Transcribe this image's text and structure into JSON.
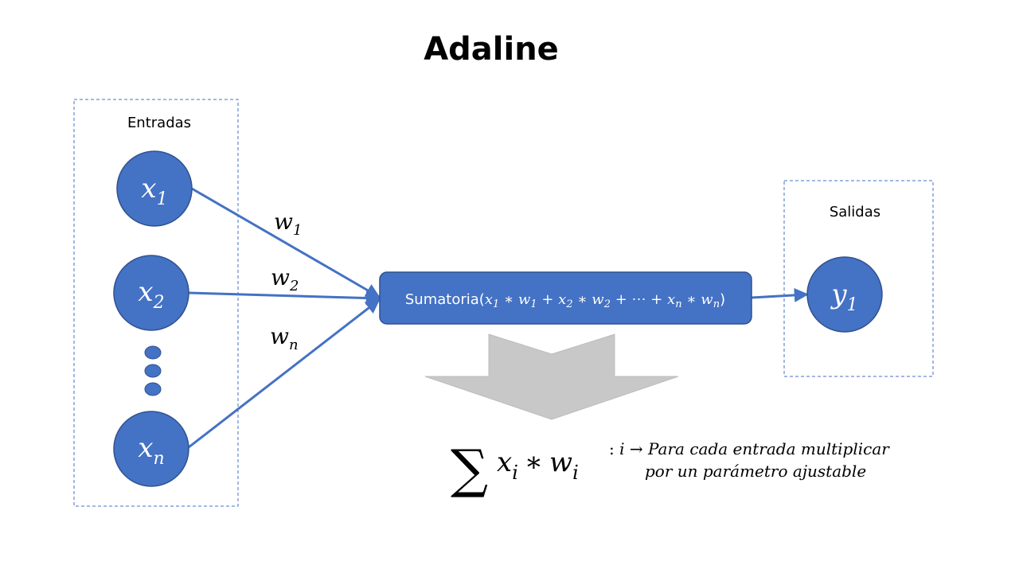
{
  "title": "Adaline",
  "inputs": {
    "label": "Entradas",
    "nodes": [
      {
        "var": "x",
        "sub": "1"
      },
      {
        "var": "x",
        "sub": "2"
      },
      {
        "var": "x",
        "sub": "n"
      }
    ]
  },
  "weights": [
    {
      "var": "w",
      "sub": "1"
    },
    {
      "var": "w",
      "sub": "2"
    },
    {
      "var": "w",
      "sub": "n"
    }
  ],
  "summation_box": {
    "prefix": "Sumatoria(",
    "t1_x": "x",
    "t1_xs": "1",
    "t1_w": "w",
    "t1_ws": "1",
    "t2_x": "x",
    "t2_xs": "2",
    "t2_w": "w",
    "t2_ws": "2",
    "mult": " ∗ ",
    "plus": " + ",
    "ellipsis": "⋯",
    "tn_x": "x",
    "tn_xs": "n",
    "tn_w": "w",
    "tn_ws": "n",
    "suffix": ")"
  },
  "outputs": {
    "label": "Salidas",
    "nodes": [
      {
        "var": "y",
        "sub": "1"
      }
    ]
  },
  "formula": {
    "sigma": "∑",
    "x": "x",
    "x_sub": "i",
    "mult": "∗",
    "w": "w",
    "w_sub": "i"
  },
  "note": {
    "prefix": ": ",
    "index": "i",
    "arrow": " → ",
    "line1": "Para cada entrada multiplicar",
    "line2": "por un parámetro ajustable"
  },
  "colors": {
    "node_fill": "#4472c4",
    "node_stroke": "#2f528f",
    "edge": "#4472c4",
    "dashed_border": "#4472c4",
    "down_arrow": "#c8c8c8"
  }
}
